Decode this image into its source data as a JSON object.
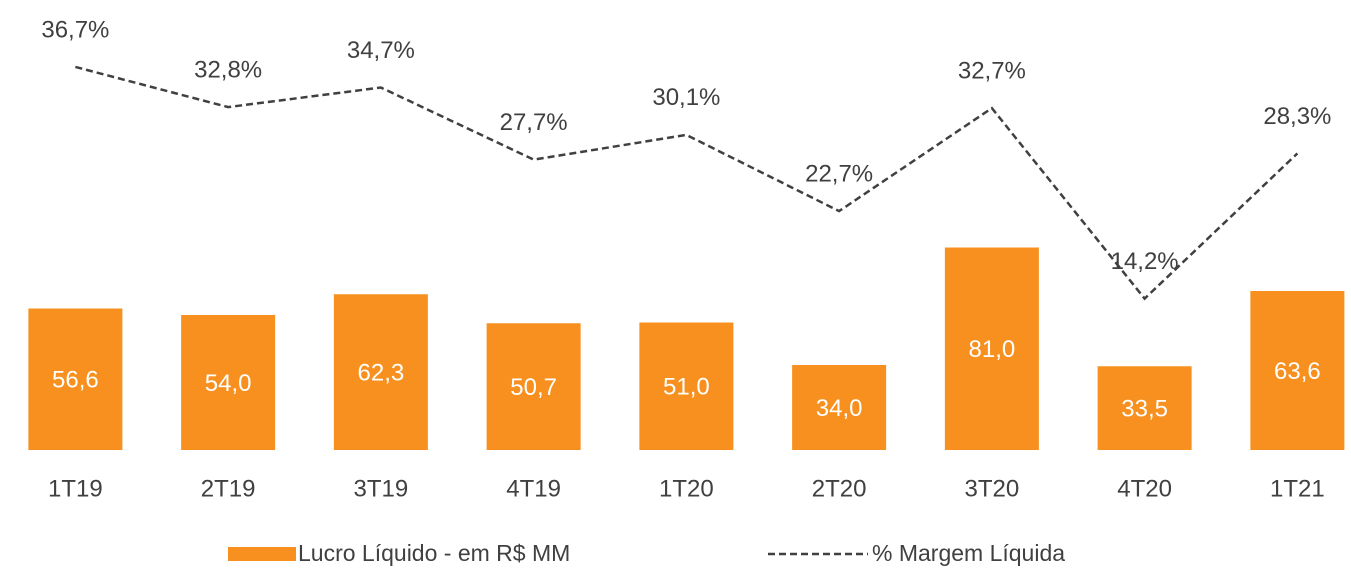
{
  "chart_data": {
    "type": "bar",
    "categories": [
      "1T19",
      "2T19",
      "3T19",
      "4T19",
      "1T20",
      "2T20",
      "3T20",
      "4T20",
      "1T21"
    ],
    "series": [
      {
        "name": "Lucro Líquido - em R$ MM",
        "type": "bar",
        "color": "#f7901e",
        "values": [
          56.6,
          54.0,
          62.3,
          50.7,
          51.0,
          34.0,
          81.0,
          33.5,
          63.6
        ],
        "value_labels": [
          "56,6",
          "54,0",
          "62,3",
          "50,7",
          "51,0",
          "34,0",
          "81,0",
          "33,5",
          "63,6"
        ]
      },
      {
        "name": "% Margem Líquida",
        "type": "line",
        "axis": "y2",
        "color": "#404040",
        "values": [
          36.7,
          32.8,
          34.7,
          27.7,
          30.1,
          22.7,
          32.7,
          14.2,
          28.3
        ],
        "value_labels": [
          "36,7%",
          "32,8%",
          "34,7%",
          "27,7%",
          "30,1%",
          "22,7%",
          "32,7%",
          "14,2%",
          "28,3%"
        ]
      }
    ],
    "ylim": [
      0,
      180
    ],
    "y2lim": [
      -0.5,
      43.2
    ],
    "legend": "bottom"
  }
}
